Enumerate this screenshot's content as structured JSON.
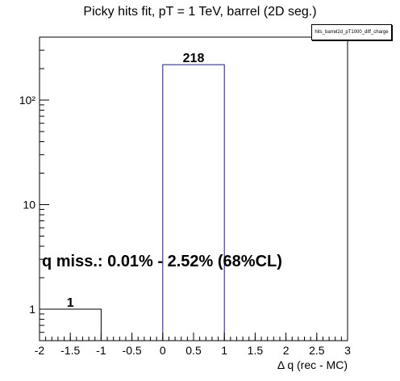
{
  "title": "Picky hits fit, pT = 1 TeV, barrel (2D seg.)",
  "stat_box_label": "hits_barrel2d_pT1000_diff_charge",
  "annotation": "q miss.: 0.01% - 2.52% (68%CL)",
  "colors": {
    "hist_line": "#1a1a7a",
    "axis": "#000000",
    "background": "#ffffff"
  },
  "chart_data": {
    "type": "bar",
    "title": "Picky hits fit, pT = 1 TeV, barrel (2D seg.)",
    "xlabel": "Δ q (rec - MC)",
    "ylabel": "",
    "xlim": [
      -2,
      3
    ],
    "ylim": [
      0.5,
      400
    ],
    "y_scale": "log",
    "grid": false,
    "bins": [
      {
        "x_low": -2,
        "x_high": -1,
        "value": 1,
        "label": "1"
      },
      {
        "x_low": -1,
        "x_high": 0,
        "value": 0,
        "label": ""
      },
      {
        "x_low": 0,
        "x_high": 1,
        "value": 218,
        "label": "218"
      },
      {
        "x_low": 1,
        "x_high": 2,
        "value": 0,
        "label": ""
      },
      {
        "x_low": 2,
        "x_high": 3,
        "value": 0,
        "label": ""
      }
    ],
    "x_ticks": [
      -2,
      -1.5,
      -1,
      -0.5,
      0,
      0.5,
      1,
      1.5,
      2,
      2.5,
      3
    ],
    "x_tick_labels": [
      "-2",
      "-1.5",
      "-1",
      "-0.5",
      "0",
      "0.5",
      "1",
      "1.5",
      "2",
      "2.5",
      "3"
    ],
    "y_ticks": [
      1,
      10,
      100
    ],
    "y_tick_labels": [
      "1",
      "10",
      "10²"
    ]
  }
}
